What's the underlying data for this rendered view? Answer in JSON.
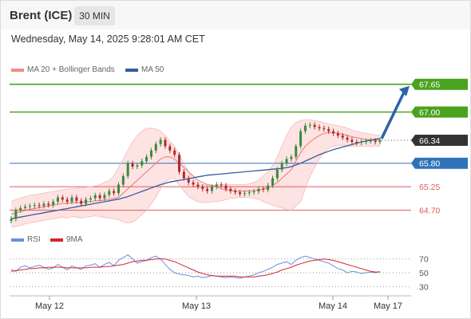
{
  "header": {
    "instrument": "Brent (ICE)",
    "timeframe": "30 MIN"
  },
  "datetime": "Wednesday, May 14, 2025 9:28:01 AM CET",
  "legend": {
    "main": [
      {
        "name": "MA 20 + Bollinger Bands",
        "color": "#f28b82"
      },
      {
        "name": "MA 50",
        "color": "#2f5f9e"
      }
    ],
    "rsi": [
      {
        "name": "RSI",
        "color": "#6c8ee0"
      },
      {
        "name": "9MA",
        "color": "#d62728"
      }
    ]
  },
  "colors": {
    "resistance": "#4aa31e",
    "pivot": "#2e73b8",
    "support": "#e05a5a",
    "current": "#333333",
    "up_candle": "#3a8a3a",
    "down_candle": "#b02a2a"
  },
  "chart_data": {
    "type": "candlestick",
    "price_axis": {
      "ylim": [
        64.3,
        67.85
      ]
    },
    "x_ticks": [
      "May 12",
      "May 13",
      "May 14",
      "May 17"
    ],
    "levels": [
      {
        "value": "67.65",
        "kind": "resistance"
      },
      {
        "value": "67.00",
        "kind": "resistance"
      },
      {
        "value": "66.34",
        "kind": "current"
      },
      {
        "value": "65.80",
        "kind": "pivot"
      },
      {
        "value": "65.25",
        "kind": "support"
      },
      {
        "value": "64.70",
        "kind": "support"
      }
    ],
    "forecast_target": 67.65,
    "closes": [
      64.5,
      64.7,
      64.75,
      64.78,
      64.8,
      64.82,
      64.8,
      64.85,
      64.82,
      64.9,
      65.0,
      64.95,
      64.9,
      65.0,
      64.92,
      64.85,
      64.95,
      64.98,
      65.05,
      64.98,
      65.06,
      65.15,
      65.1,
      65.3,
      65.5,
      65.8,
      65.72,
      65.75,
      65.85,
      65.95,
      66.1,
      66.25,
      66.35,
      66.2,
      66.1,
      66.0,
      65.6,
      65.45,
      65.35,
      65.3,
      65.25,
      65.2,
      65.15,
      65.25,
      65.3,
      65.28,
      65.2,
      65.15,
      65.12,
      65.08,
      65.1,
      65.12,
      65.14,
      65.2,
      65.18,
      65.28,
      65.45,
      65.65,
      65.8,
      65.9,
      65.95,
      66.2,
      66.55,
      66.68,
      66.7,
      66.65,
      66.62,
      66.6,
      66.55,
      66.5,
      66.45,
      66.4,
      66.35,
      66.3,
      66.28,
      66.3,
      66.32,
      66.33,
      66.3,
      66.34
    ],
    "ma20": [
      64.6,
      64.64,
      64.66,
      64.7,
      64.72,
      64.74,
      64.76,
      64.78,
      64.8,
      64.82,
      64.84,
      64.86,
      64.86,
      64.88,
      64.88,
      64.88,
      64.9,
      64.9,
      64.92,
      64.92,
      64.94,
      64.96,
      64.98,
      65.0,
      65.1,
      65.2,
      65.3,
      65.4,
      65.5,
      65.6,
      65.7,
      65.8,
      65.9,
      65.95,
      65.95,
      65.9,
      65.8,
      65.7,
      65.6,
      65.5,
      65.4,
      65.35,
      65.3,
      65.28,
      65.25,
      65.2,
      65.18,
      65.16,
      65.15,
      65.14,
      65.15,
      65.15,
      65.16,
      65.17,
      65.2,
      65.22,
      65.28,
      65.35,
      65.45,
      65.55,
      65.65,
      65.85,
      66.05,
      66.2,
      66.3,
      66.38,
      66.45,
      66.5,
      66.52,
      66.52,
      66.5,
      66.48,
      66.45,
      66.42,
      66.4,
      66.38,
      66.36,
      66.35,
      66.34,
      66.34
    ],
    "bb_upper": [
      64.9,
      64.95,
      64.98,
      65.02,
      65.05,
      65.06,
      65.08,
      65.1,
      65.12,
      65.14,
      65.16,
      65.18,
      65.2,
      65.2,
      65.22,
      65.22,
      65.24,
      65.25,
      65.27,
      65.3,
      65.35,
      65.4,
      65.5,
      65.7,
      65.9,
      66.1,
      66.3,
      66.45,
      66.55,
      66.62,
      66.62,
      66.6,
      66.55,
      66.45,
      66.32,
      66.2,
      66.0,
      65.8,
      65.6,
      65.45,
      65.35,
      65.3,
      65.28,
      65.28,
      65.3,
      65.3,
      65.3,
      65.3,
      65.3,
      65.3,
      65.3,
      65.32,
      65.35,
      65.4,
      65.5,
      65.6,
      65.75,
      65.95,
      66.2,
      66.45,
      66.65,
      66.75,
      66.8,
      66.82,
      66.82,
      66.8,
      66.78,
      66.75,
      66.72,
      66.7,
      66.68,
      66.66,
      66.62,
      66.58,
      66.55,
      66.52,
      66.5,
      66.48,
      66.46,
      66.45
    ],
    "bb_lower": [
      64.3,
      64.32,
      64.34,
      64.38,
      64.4,
      64.42,
      64.44,
      64.46,
      64.48,
      64.5,
      64.52,
      64.54,
      64.52,
      64.55,
      64.54,
      64.52,
      64.54,
      64.55,
      64.57,
      64.55,
      64.53,
      64.52,
      64.5,
      64.48,
      64.42,
      64.4,
      64.42,
      64.5,
      64.6,
      64.7,
      64.85,
      65.0,
      65.2,
      65.35,
      65.45,
      65.45,
      65.3,
      65.15,
      65.02,
      64.95,
      64.9,
      64.88,
      64.88,
      64.9,
      64.9,
      64.92,
      64.95,
      64.98,
      64.98,
      65.0,
      65.0,
      65.0,
      64.98,
      64.96,
      64.9,
      64.86,
      64.82,
      64.78,
      64.75,
      64.72,
      64.7,
      64.8,
      64.9,
      65.2,
      65.5,
      65.7,
      65.9,
      66.05,
      66.15,
      66.2,
      66.22,
      66.22,
      66.2,
      66.2,
      66.2,
      66.2,
      66.2,
      66.2,
      66.2,
      66.2
    ],
    "ma50": [
      64.5,
      64.52,
      64.54,
      64.56,
      64.58,
      64.6,
      64.62,
      64.64,
      64.66,
      64.68,
      64.7,
      64.72,
      64.74,
      64.76,
      64.78,
      64.8,
      64.82,
      64.84,
      64.86,
      64.88,
      64.9,
      64.92,
      64.94,
      64.96,
      64.99,
      65.02,
      65.06,
      65.1,
      65.14,
      65.18,
      65.22,
      65.26,
      65.3,
      65.33,
      65.36,
      65.38,
      65.4,
      65.42,
      65.44,
      65.46,
      65.48,
      65.5,
      65.52,
      65.53,
      65.54,
      65.55,
      65.56,
      65.57,
      65.58,
      65.59,
      65.6,
      65.61,
      65.62,
      65.63,
      65.64,
      65.65,
      65.66,
      65.67,
      65.68,
      65.7,
      65.72,
      65.76,
      65.8,
      65.85,
      65.9,
      65.95,
      66.0,
      66.04,
      66.08,
      66.12,
      66.15,
      66.18,
      66.21,
      66.24,
      66.27,
      66.3,
      66.32,
      66.34,
      66.36,
      66.38
    ],
    "rsi": {
      "ylim": [
        20,
        80
      ],
      "ticks": [
        "70",
        "50",
        "30"
      ],
      "values": [
        55,
        52,
        58,
        60,
        57,
        59,
        61,
        58,
        55,
        57,
        62,
        58,
        54,
        60,
        57,
        55,
        60,
        61,
        63,
        58,
        62,
        65,
        60,
        68,
        72,
        76,
        70,
        64,
        66,
        68,
        72,
        74,
        70,
        62,
        55,
        50,
        48,
        47,
        46,
        44,
        45,
        43,
        44,
        46,
        45,
        44,
        43,
        44,
        43,
        42,
        44,
        45,
        47,
        50,
        52,
        55,
        58,
        62,
        64,
        66,
        62,
        68,
        72,
        74,
        72,
        70,
        68,
        66,
        64,
        60,
        56,
        54,
        50,
        52,
        51,
        49,
        50,
        51,
        50,
        52
      ],
      "ma9": [
        52,
        53,
        54,
        55,
        56,
        56,
        57,
        57,
        58,
        58,
        58,
        58,
        57,
        57,
        57,
        57,
        57,
        58,
        58,
        58,
        59,
        59,
        60,
        61,
        62,
        64,
        66,
        67,
        68,
        68,
        69,
        70,
        70,
        70,
        68,
        66,
        63,
        60,
        57,
        54,
        51,
        49,
        47,
        46,
        45,
        45,
        45,
        45,
        45,
        44,
        44,
        44,
        44,
        45,
        46,
        47,
        49,
        51,
        54,
        56,
        58,
        61,
        63,
        65,
        67,
        68,
        69,
        70,
        69,
        68,
        66,
        64,
        62,
        60,
        58,
        56,
        54,
        52,
        51,
        51
      ]
    }
  }
}
